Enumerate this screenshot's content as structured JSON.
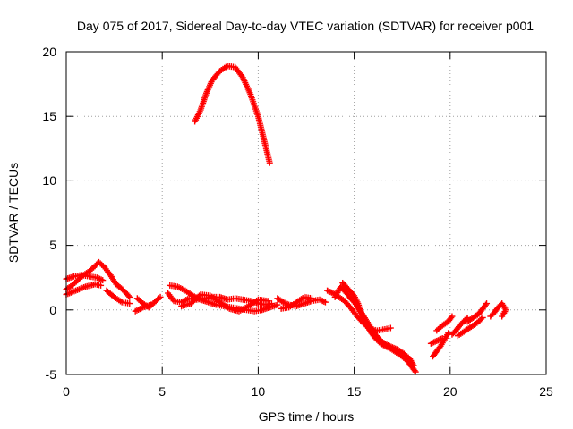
{
  "chart_data": {
    "type": "scatter",
    "title": "Day 075 of 2017, Sidereal Day-to-day VTEC variation (SDTVAR) for receiver p001",
    "xlabel": "GPS time / hours",
    "ylabel": "SDTVAR / TECUs",
    "xlim": [
      0,
      25
    ],
    "ylim": [
      -5,
      20
    ],
    "xticks": [
      "0",
      "5",
      "10",
      "15",
      "20",
      "25"
    ],
    "yticks": [
      "-5",
      "0",
      "5",
      "10",
      "15",
      "20"
    ],
    "grid": true,
    "marker": "+",
    "color": "#ff0000",
    "series": [
      {
        "name": "SDTVAR",
        "segments": [
          {
            "points": [
              [
                6.7,
                14.6
              ],
              [
                7.0,
                15.5
              ],
              [
                7.3,
                16.8
              ],
              [
                7.6,
                17.8
              ],
              [
                8.0,
                18.5
              ],
              [
                8.4,
                18.9
              ],
              [
                8.8,
                18.8
              ],
              [
                9.2,
                18.0
              ],
              [
                9.6,
                16.7
              ],
              [
                10.0,
                15.0
              ],
              [
                10.3,
                13.2
              ],
              [
                10.6,
                11.4
              ]
            ]
          },
          {
            "points": [
              [
                0,
                1.6
              ],
              [
                0.3,
                1.9
              ],
              [
                0.6,
                2.3
              ],
              [
                0.9,
                2.7
              ],
              [
                1.2,
                3.0
              ],
              [
                1.5,
                3.4
              ],
              [
                1.7,
                3.7
              ],
              [
                2.0,
                3.3
              ],
              [
                2.3,
                2.7
              ],
              [
                2.6,
                2.0
              ],
              [
                3.0,
                1.5
              ],
              [
                3.3,
                1.0
              ]
            ]
          },
          {
            "points": [
              [
                0,
                2.4
              ],
              [
                0.4,
                2.6
              ],
              [
                0.8,
                2.7
              ],
              [
                1.2,
                2.6
              ],
              [
                1.6,
                2.5
              ],
              [
                1.9,
                2.3
              ]
            ]
          },
          {
            "points": [
              [
                0,
                1.2
              ],
              [
                0.5,
                1.5
              ],
              [
                1.0,
                1.8
              ],
              [
                1.5,
                2.0
              ],
              [
                1.8,
                1.9
              ]
            ]
          },
          {
            "points": [
              [
                2.1,
                1.5
              ],
              [
                2.5,
                1.0
              ],
              [
                2.9,
                0.6
              ],
              [
                3.3,
                0.5
              ]
            ]
          },
          {
            "points": [
              [
                3.7,
                0.9
              ],
              [
                4.0,
                0.5
              ],
              [
                4.3,
                0.2
              ],
              [
                4.6,
                0.6
              ],
              [
                4.9,
                1.0
              ]
            ]
          },
          {
            "points": [
              [
                3.6,
                -0.1
              ],
              [
                4.0,
                0.2
              ],
              [
                4.4,
                0.4
              ]
            ]
          },
          {
            "points": [
              [
                5.3,
                1.3
              ],
              [
                5.6,
                0.7
              ],
              [
                6.0,
                0.6
              ],
              [
                6.4,
                0.9
              ],
              [
                6.8,
                0.8
              ],
              [
                7.2,
                0.9
              ],
              [
                7.6,
                1.0
              ],
              [
                8.0,
                1.0
              ],
              [
                8.4,
                0.8
              ],
              [
                8.8,
                0.9
              ],
              [
                9.2,
                0.8
              ],
              [
                9.6,
                0.7
              ],
              [
                10.0,
                0.5
              ],
              [
                10.4,
                0.4
              ],
              [
                10.7,
                0.5
              ]
            ]
          },
          {
            "points": [
              [
                5.4,
                1.9
              ],
              [
                5.8,
                1.8
              ],
              [
                6.2,
                1.5
              ],
              [
                6.6,
                1.1
              ],
              [
                7.0,
                0.8
              ],
              [
                7.4,
                0.6
              ],
              [
                7.8,
                0.4
              ],
              [
                8.2,
                0.3
              ],
              [
                8.6,
                0.2
              ],
              [
                9.0,
                0.1
              ],
              [
                9.4,
                0.0
              ],
              [
                9.8,
                -0.1
              ],
              [
                10.2,
                0.0
              ],
              [
                10.6,
                0.2
              ],
              [
                11.0,
                0.4
              ]
            ]
          },
          {
            "points": [
              [
                6.0,
                0.3
              ],
              [
                6.5,
                0.5
              ],
              [
                7.0,
                1.2
              ],
              [
                7.5,
                1.1
              ],
              [
                8.0,
                0.6
              ],
              [
                8.5,
                0.1
              ],
              [
                9.0,
                -0.1
              ],
              [
                9.5,
                0.3
              ],
              [
                10.0,
                0.8
              ],
              [
                10.5,
                0.7
              ]
            ]
          },
          {
            "points": [
              [
                11.0,
                0.9
              ],
              [
                11.3,
                0.6
              ],
              [
                11.6,
                0.4
              ],
              [
                12.0,
                0.3
              ],
              [
                12.4,
                0.5
              ],
              [
                12.8,
                0.7
              ],
              [
                13.2,
                0.8
              ],
              [
                13.5,
                0.6
              ]
            ]
          },
          {
            "points": [
              [
                11.2,
                0.1
              ],
              [
                11.6,
                0.2
              ],
              [
                12.0,
                0.6
              ],
              [
                12.4,
                1.0
              ],
              [
                12.8,
                0.9
              ]
            ]
          },
          {
            "points": [
              [
                13.6,
                1.5
              ],
              [
                13.9,
                1.3
              ],
              [
                14.2,
                1.0
              ],
              [
                14.5,
                0.7
              ],
              [
                14.8,
                0.2
              ],
              [
                15.1,
                -0.4
              ],
              [
                15.4,
                -0.9
              ],
              [
                15.6,
                -1.2
              ],
              [
                15.9,
                -1.5
              ],
              [
                16.2,
                -1.6
              ],
              [
                16.6,
                -1.5
              ],
              [
                16.9,
                -1.4
              ]
            ]
          },
          {
            "points": [
              [
                14.4,
                2.1
              ],
              [
                14.7,
                1.6
              ],
              [
                15.0,
                1.1
              ],
              [
                15.2,
                0.5
              ],
              [
                15.4,
                -0.3
              ],
              [
                15.6,
                -0.9
              ],
              [
                15.8,
                -1.5
              ],
              [
                16.0,
                -2.0
              ],
              [
                16.3,
                -2.5
              ],
              [
                16.6,
                -2.8
              ],
              [
                16.9,
                -3.0
              ],
              [
                17.2,
                -3.3
              ],
              [
                17.5,
                -3.6
              ],
              [
                17.8,
                -4.0
              ],
              [
                18.0,
                -4.4
              ],
              [
                18.2,
                -4.8
              ]
            ]
          },
          {
            "points": [
              [
                14.0,
                1.0
              ],
              [
                14.3,
                1.8
              ],
              [
                14.6,
                1.3
              ],
              [
                14.9,
                0.8
              ],
              [
                15.2,
                0.2
              ],
              [
                15.5,
                -0.5
              ],
              [
                15.8,
                -1.2
              ],
              [
                16.1,
                -1.9
              ],
              [
                16.4,
                -2.4
              ],
              [
                16.7,
                -2.7
              ],
              [
                17.0,
                -2.9
              ],
              [
                17.3,
                -3.1
              ],
              [
                17.6,
                -3.4
              ],
              [
                17.9,
                -3.8
              ],
              [
                18.1,
                -4.3
              ]
            ]
          },
          {
            "points": [
              [
                14.8,
                0.9
              ],
              [
                15.1,
                0.5
              ],
              [
                15.3,
                -0.1
              ],
              [
                15.5,
                -0.6
              ],
              [
                15.7,
                -1.3
              ],
              [
                15.9,
                -1.8
              ],
              [
                16.2,
                -2.2
              ],
              [
                16.5,
                -2.6
              ]
            ]
          },
          {
            "points": [
              [
                19.1,
                -3.6
              ],
              [
                19.3,
                -3.2
              ],
              [
                19.5,
                -2.8
              ],
              [
                19.7,
                -2.3
              ],
              [
                19.9,
                -1.8
              ]
            ]
          },
          {
            "points": [
              [
                19.3,
                -1.6
              ],
              [
                19.6,
                -1.2
              ],
              [
                19.9,
                -0.9
              ],
              [
                20.1,
                -0.5
              ]
            ]
          },
          {
            "points": [
              [
                19.0,
                -2.6
              ],
              [
                19.3,
                -2.4
              ],
              [
                19.6,
                -2.2
              ]
            ]
          },
          {
            "points": [
              [
                20.1,
                -1.9
              ],
              [
                20.3,
                -1.6
              ],
              [
                20.5,
                -1.2
              ],
              [
                20.7,
                -0.9
              ],
              [
                20.9,
                -0.6
              ]
            ]
          },
          {
            "points": [
              [
                20.4,
                -2.0
              ],
              [
                20.8,
                -1.6
              ],
              [
                21.1,
                -1.3
              ],
              [
                21.4,
                -1.0
              ],
              [
                21.7,
                -0.6
              ]
            ]
          },
          {
            "points": [
              [
                20.9,
                -0.9
              ],
              [
                21.2,
                -0.6
              ],
              [
                21.5,
                -0.3
              ],
              [
                21.7,
                0.1
              ],
              [
                21.9,
                0.5
              ]
            ]
          },
          {
            "points": [
              [
                22.1,
                -0.5
              ],
              [
                22.3,
                -0.2
              ],
              [
                22.5,
                0.2
              ],
              [
                22.7,
                0.5
              ],
              [
                22.9,
                0.0
              ],
              [
                22.7,
                -0.5
              ]
            ]
          }
        ]
      }
    ]
  }
}
